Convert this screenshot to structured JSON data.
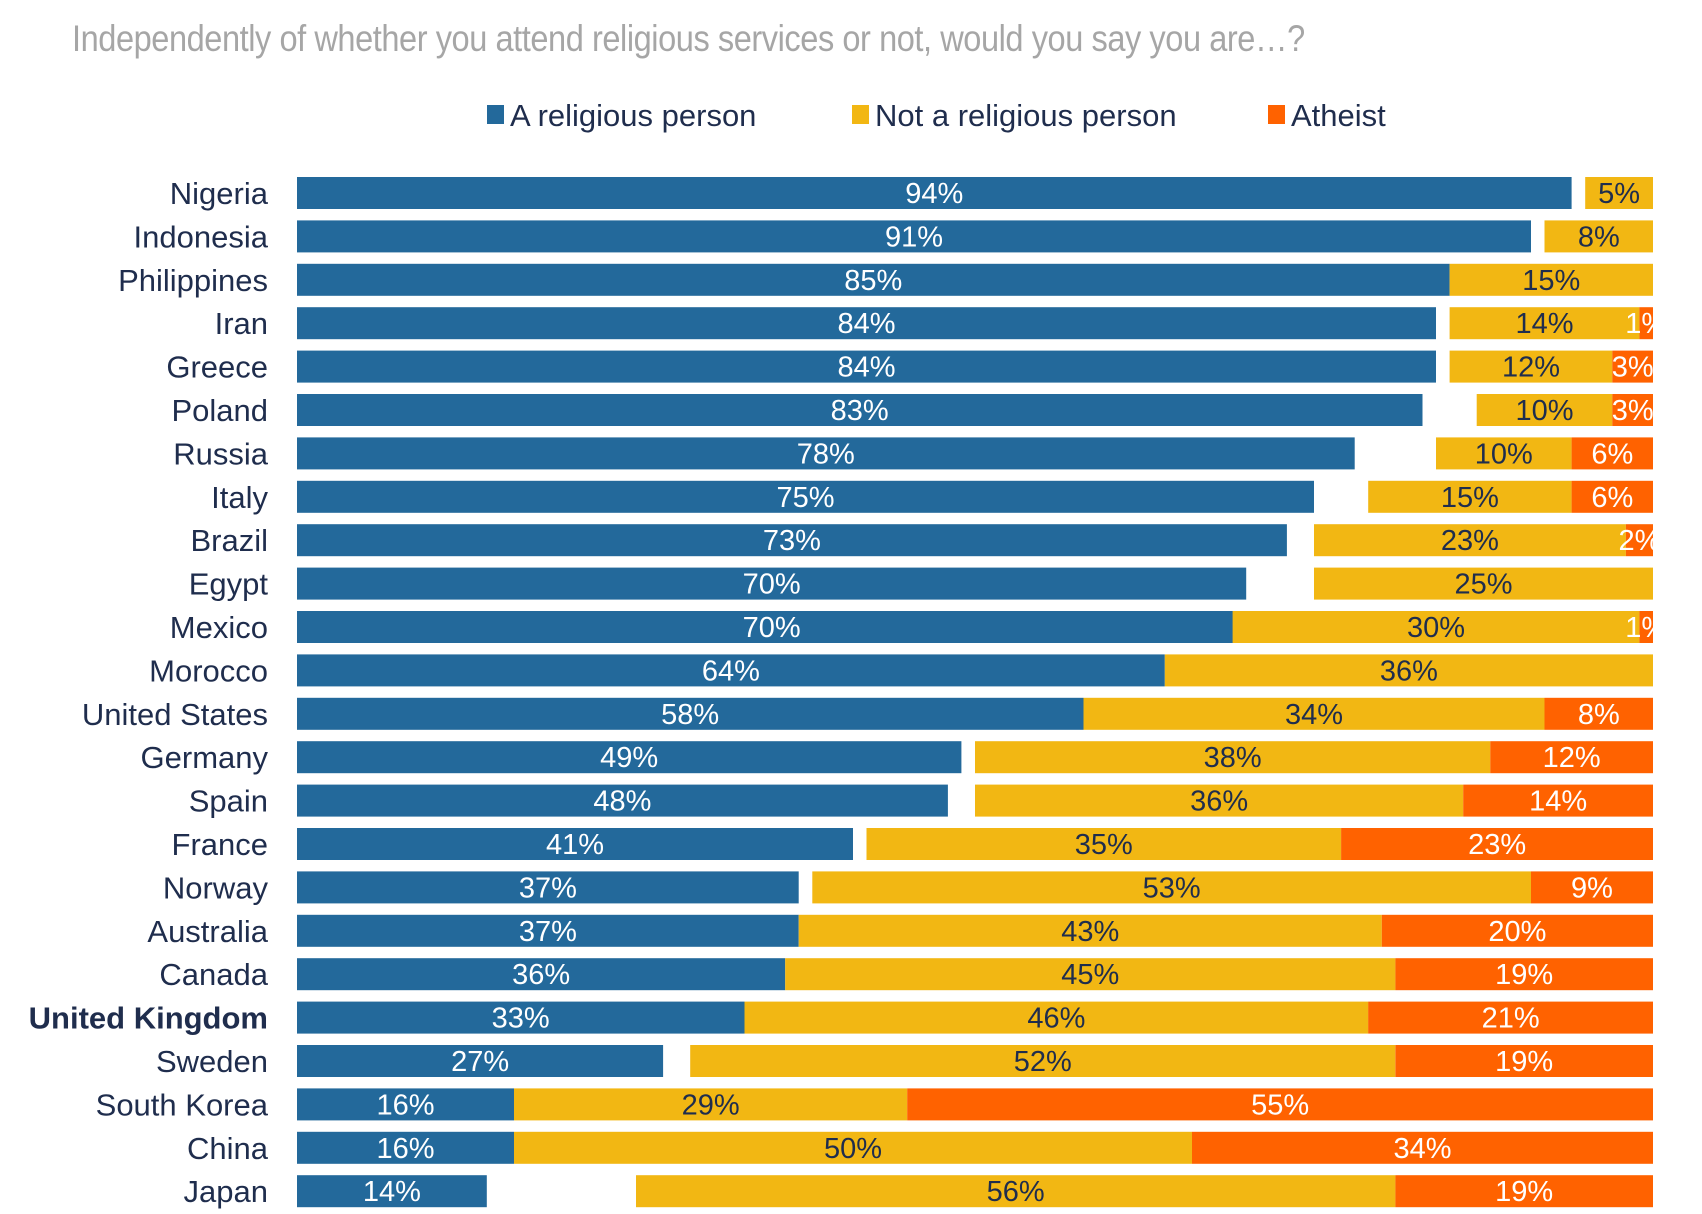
{
  "chart_data": {
    "type": "bar",
    "orientation": "horizontal",
    "stacked": true,
    "title": "Independently of whether you attend religious services or not, would you say you are…?",
    "legend_position": "top",
    "grid": false,
    "xlim": [
      0,
      100
    ],
    "categories": [
      "Nigeria",
      "Indonesia",
      "Philippines",
      "Iran",
      "Greece",
      "Poland",
      "Russia",
      "Italy",
      "Brazil",
      "Egypt",
      "Mexico",
      "Morocco",
      "United States",
      "Germany",
      "Spain",
      "France",
      "Norway",
      "Australia",
      "Canada",
      "United Kingdom",
      "Sweden",
      "South Korea",
      "China",
      "Japan"
    ],
    "highlighted_category": "United Kingdom",
    "series": [
      {
        "name": "A religious person",
        "color": "#23699b",
        "values": [
          94,
          91,
          85,
          84,
          84,
          83,
          78,
          75,
          73,
          70,
          70,
          64,
          58,
          49,
          48,
          41,
          37,
          37,
          36,
          33,
          27,
          16,
          16,
          14
        ]
      },
      {
        "name": "Not a religious person",
        "color": "#f2b713",
        "values": [
          5,
          8,
          15,
          14,
          12,
          10,
          10,
          15,
          23,
          25,
          30,
          36,
          34,
          38,
          36,
          35,
          53,
          43,
          45,
          46,
          52,
          29,
          50,
          56
        ]
      },
      {
        "name": "Atheist",
        "color": "#ff6200",
        "values": [
          null,
          null,
          null,
          1,
          3,
          3,
          6,
          6,
          2,
          null,
          1,
          null,
          8,
          12,
          14,
          23,
          9,
          20,
          19,
          21,
          19,
          55,
          34,
          19
        ]
      }
    ]
  }
}
